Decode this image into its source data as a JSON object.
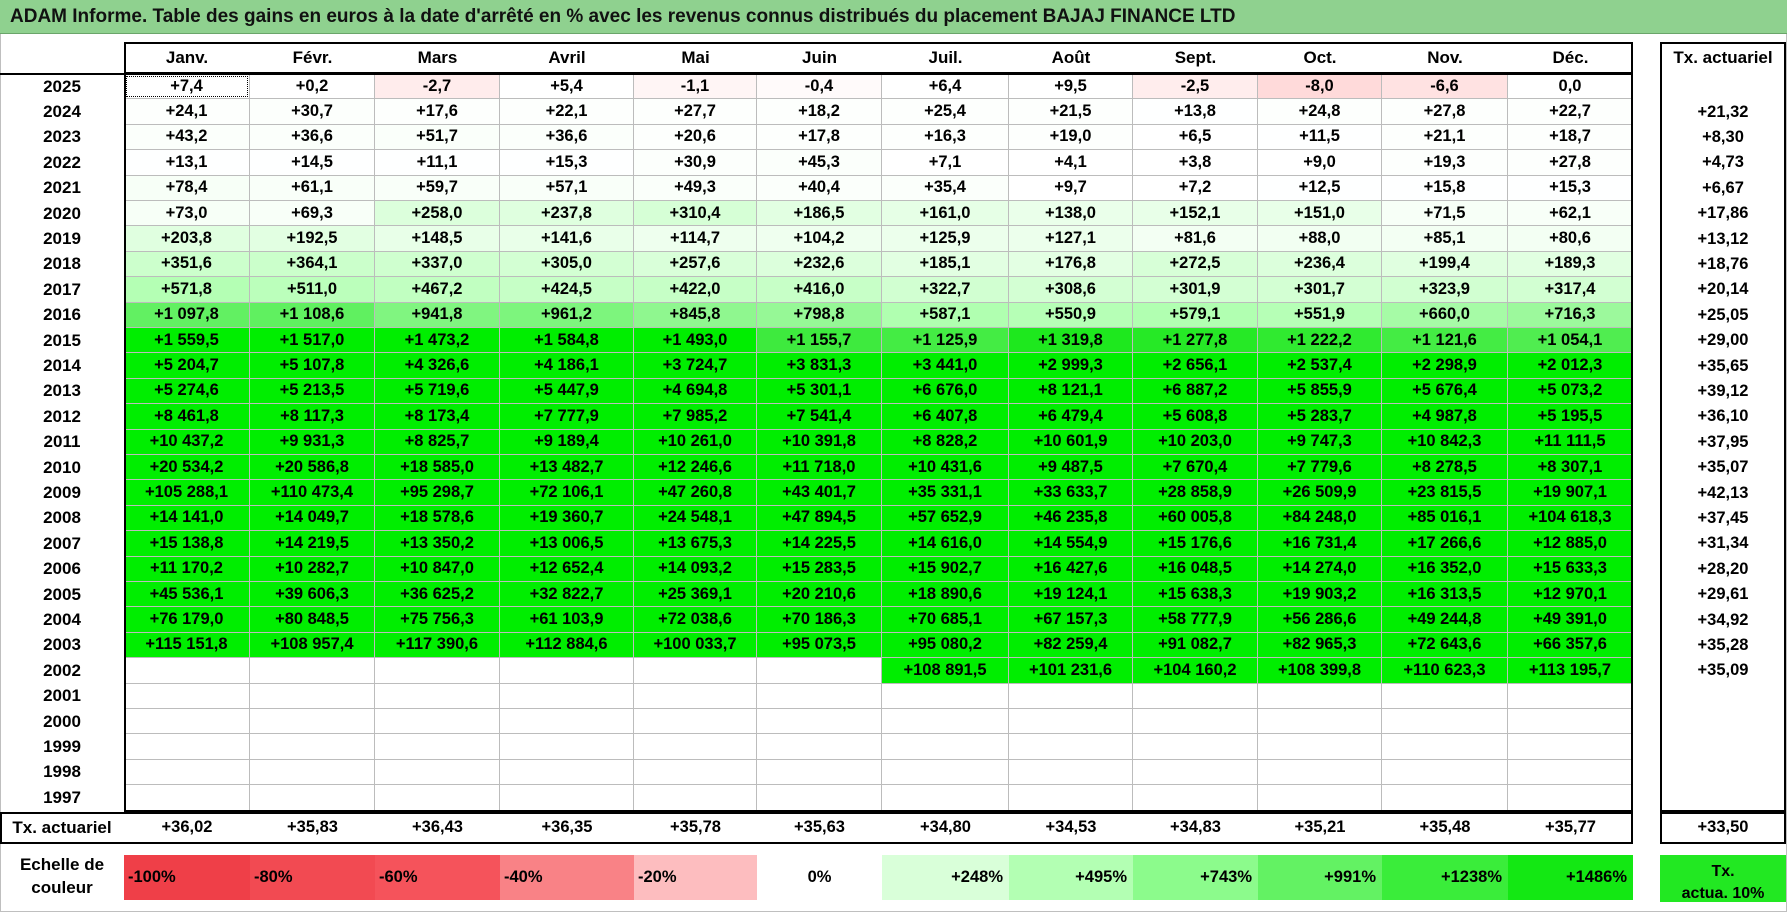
{
  "title": "ADAM Informe. Table des gains en euros à la date d'arrêté en % avec les revenus connus distribués du placement BAJAJ FINANCE LTD",
  "months": [
    "Janv.",
    "Févr.",
    "Mars",
    "Avril",
    "Mai",
    "Juin",
    "Juil.",
    "Août",
    "Sept.",
    "Oct.",
    "Nov.",
    "Déc."
  ],
  "tx_header": "Tx. actuariel",
  "rows": [
    {
      "year": "2025",
      "cells": [
        "+7,4",
        "+0,2",
        "-2,7",
        "+5,4",
        "-1,1",
        "-0,4",
        "+6,4",
        "+9,5",
        "-2,5",
        "-8,0",
        "-6,6",
        "0,0"
      ],
      "colors": [
        "#ffffff",
        "#ffffff",
        "#ffecec",
        "#ffffff",
        "#fff5f5",
        "#fffafa",
        "#ffffff",
        "#ffffff",
        "#ffeded",
        "#ffdada",
        "#ffe2e2",
        "#ffffff"
      ],
      "tx": ""
    },
    {
      "year": "2024",
      "cells": [
        "+24,1",
        "+30,7",
        "+17,6",
        "+22,1",
        "+27,7",
        "+18,2",
        "+25,4",
        "+21,5",
        "+13,8",
        "+24,8",
        "+27,8",
        "+22,7"
      ],
      "colors": [
        "#fdfffd",
        "#fcfffc",
        "#fdfffd",
        "#fdfffd",
        "#fdfffd",
        "#fdfffd",
        "#fdfffd",
        "#fdfffd",
        "#feffff",
        "#fdfffd",
        "#fdfffd",
        "#fdfffd"
      ],
      "tx": "+21,32"
    },
    {
      "year": "2023",
      "cells": [
        "+43,2",
        "+36,6",
        "+51,7",
        "+36,6",
        "+20,6",
        "+17,8",
        "+16,3",
        "+19,0",
        "+6,5",
        "+11,5",
        "+21,1",
        "+18,7"
      ],
      "colors": [
        "#fbfffb",
        "#fbfffb",
        "#fafffa",
        "#fbfffb",
        "#fdfffd",
        "#fdfffd",
        "#fdfffd",
        "#fdfffd",
        "#ffffff",
        "#feffff",
        "#fdfffd",
        "#fdfffd"
      ],
      "tx": "+8,30"
    },
    {
      "year": "2022",
      "cells": [
        "+13,1",
        "+14,5",
        "+11,1",
        "+15,3",
        "+30,9",
        "+45,3",
        "+7,1",
        "+4,1",
        "+3,8",
        "+9,0",
        "+19,3",
        "+27,8"
      ],
      "colors": [
        "#feffff",
        "#feffff",
        "#feffff",
        "#feffff",
        "#fcfffc",
        "#fbfffb",
        "#ffffff",
        "#ffffff",
        "#ffffff",
        "#ffffff",
        "#fdfffd",
        "#fdfffd"
      ],
      "tx": "+4,73"
    },
    {
      "year": "2021",
      "cells": [
        "+78,4",
        "+61,1",
        "+59,7",
        "+57,1",
        "+49,3",
        "+40,4",
        "+35,4",
        "+9,7",
        "+7,2",
        "+12,5",
        "+15,8",
        "+15,3"
      ],
      "colors": [
        "#f7fff7",
        "#f9fff9",
        "#f9fff9",
        "#f9fff9",
        "#fafffa",
        "#fbfffb",
        "#fbfffb",
        "#ffffff",
        "#ffffff",
        "#feffff",
        "#feffff",
        "#feffff"
      ],
      "tx": "+6,67"
    },
    {
      "year": "2020",
      "cells": [
        "+73,0",
        "+69,3",
        "+258,0",
        "+237,8",
        "+310,4",
        "+186,5",
        "+161,0",
        "+138,0",
        "+152,1",
        "+151,0",
        "+71,5",
        "+62,1"
      ],
      "colors": [
        "#f7fff7",
        "#f8fff8",
        "#dcffdc",
        "#dfffdf",
        "#d6ffd6",
        "#e2ffe2",
        "#e6ffe6",
        "#eaffea",
        "#e8ffe8",
        "#e8ffe8",
        "#f7fff7",
        "#f8fff8"
      ],
      "tx": "+17,86"
    },
    {
      "year": "2019",
      "cells": [
        "+203,8",
        "+192,5",
        "+148,5",
        "+141,6",
        "+114,7",
        "+104,2",
        "+125,9",
        "+127,1",
        "+81,6",
        "+88,0",
        "+85,1",
        "+80,6"
      ],
      "colors": [
        "#e0ffe0",
        "#e2ffe2",
        "#e8ffe8",
        "#e9ffe9",
        "#eeffee",
        "#efffef",
        "#ecffec",
        "#ecffec",
        "#f3fff3",
        "#f2fff2",
        "#f3fff3",
        "#f3fff3"
      ],
      "tx": "+13,12"
    },
    {
      "year": "2018",
      "cells": [
        "+351,6",
        "+364,1",
        "+337,0",
        "+305,0",
        "+257,6",
        "+232,6",
        "+185,1",
        "+176,8",
        "+272,5",
        "+236,4",
        "+199,4",
        "+189,3"
      ],
      "colors": [
        "#ccffcc",
        "#cbffcb",
        "#cfffcf",
        "#d3ffd3",
        "#d9ffd9",
        "#dcffdc",
        "#e2ffe2",
        "#e3ffe3",
        "#d7ffd7",
        "#dcffdc",
        "#e0ffe0",
        "#e1ffe1"
      ],
      "tx": "+18,76"
    },
    {
      "year": "2017",
      "cells": [
        "+571,8",
        "+511,0",
        "+467,2",
        "+424,5",
        "+422,0",
        "+416,0",
        "+322,7",
        "+308,6",
        "+301,9",
        "+301,7",
        "+323,9",
        "+317,4"
      ],
      "colors": [
        "#b4ffb4",
        "#bbffbb",
        "#c1ffc1",
        "#c6ffc6",
        "#c6ffc6",
        "#c7ffc7",
        "#d1ffd1",
        "#d3ffd3",
        "#d3ffd3",
        "#d3ffd3",
        "#d1ffd1",
        "#d2ffd2"
      ],
      "tx": "+20,14"
    },
    {
      "year": "2016",
      "cells": [
        "+1 097,8",
        "+1 108,6",
        "+941,8",
        "+961,2",
        "+845,8",
        "+798,8",
        "+587,1",
        "+550,9",
        "+579,1",
        "+551,9",
        "+660,0",
        "+716,3"
      ],
      "colors": [
        "#62f062",
        "#60f060",
        "#80f580",
        "#7df57d",
        "#8ff78f",
        "#96f896",
        "#b0ffb0",
        "#b6ffb6",
        "#b1ffb1",
        "#b6ffb6",
        "#a6fba6",
        "#9cf99c"
      ],
      "tx": "+25,05"
    },
    {
      "year": "2015",
      "cells": [
        "+1 559,5",
        "+1 517,0",
        "+1 473,2",
        "+1 584,8",
        "+1 493,0",
        "+1 155,7",
        "+1 125,9",
        "+1 319,8",
        "+1 277,8",
        "+1 222,2",
        "+1 121,6",
        "+1 054,1"
      ],
      "colors": [
        "#00ee00",
        "#00ee00",
        "#00ee00",
        "#00ee00",
        "#00ee00",
        "#3eea3e",
        "#44ec44",
        "#1ee81e",
        "#26e926",
        "#30ea30",
        "#44ec44",
        "#50ed50"
      ],
      "tx": "+29,00"
    },
    {
      "year": "2014",
      "cells": [
        "+5 204,7",
        "+5 107,8",
        "+4 326,6",
        "+4 186,1",
        "+3 724,7",
        "+3 831,3",
        "+3 441,0",
        "+2 999,3",
        "+2 656,1",
        "+2 537,4",
        "+2 298,9",
        "+2 012,3"
      ],
      "colors": [
        "#00ee00",
        "#00ee00",
        "#00ee00",
        "#00ee00",
        "#00ee00",
        "#00ee00",
        "#00ee00",
        "#00ee00",
        "#00ee00",
        "#00ee00",
        "#00ee00",
        "#00ee00"
      ],
      "tx": "+35,65"
    },
    {
      "year": "2013",
      "cells": [
        "+5 274,6",
        "+5 213,5",
        "+5 719,6",
        "+5 447,9",
        "+4 694,8",
        "+5 301,1",
        "+6 676,0",
        "+8 121,1",
        "+6 887,2",
        "+5 855,9",
        "+5 676,4",
        "+5 073,2"
      ],
      "colors": [
        "#00ee00",
        "#00ee00",
        "#00ee00",
        "#00ee00",
        "#00ee00",
        "#00ee00",
        "#00ee00",
        "#00ee00",
        "#00ee00",
        "#00ee00",
        "#00ee00",
        "#00ee00"
      ],
      "tx": "+39,12"
    },
    {
      "year": "2012",
      "cells": [
        "+8 461,8",
        "+8 117,3",
        "+8 173,4",
        "+7 777,9",
        "+7 985,2",
        "+7 541,4",
        "+6 407,8",
        "+6 479,4",
        "+5 608,8",
        "+5 283,7",
        "+4 987,8",
        "+5 195,5"
      ],
      "colors": [
        "#00ee00",
        "#00ee00",
        "#00ee00",
        "#00ee00",
        "#00ee00",
        "#00ee00",
        "#00ee00",
        "#00ee00",
        "#00ee00",
        "#00ee00",
        "#00ee00",
        "#00ee00"
      ],
      "tx": "+36,10"
    },
    {
      "year": "2011",
      "cells": [
        "+10 437,2",
        "+9 931,3",
        "+8 825,7",
        "+9 189,4",
        "+10 261,0",
        "+10 391,8",
        "+8 828,2",
        "+10 601,9",
        "+10 203,0",
        "+9 747,3",
        "+10 842,3",
        "+11 111,5"
      ],
      "colors": [
        "#00ee00",
        "#00ee00",
        "#00ee00",
        "#00ee00",
        "#00ee00",
        "#00ee00",
        "#00ee00",
        "#00ee00",
        "#00ee00",
        "#00ee00",
        "#00ee00",
        "#00ee00"
      ],
      "tx": "+37,95"
    },
    {
      "year": "2010",
      "cells": [
        "+20 534,2",
        "+20 586,8",
        "+18 585,0",
        "+13 482,7",
        "+12 246,6",
        "+11 718,0",
        "+10 431,6",
        "+9 487,5",
        "+7 670,4",
        "+7 779,6",
        "+8 278,5",
        "+8 307,1"
      ],
      "colors": [
        "#00ee00",
        "#00ee00",
        "#00ee00",
        "#00ee00",
        "#00ee00",
        "#00ee00",
        "#00ee00",
        "#00ee00",
        "#00ee00",
        "#00ee00",
        "#00ee00",
        "#00ee00"
      ],
      "tx": "+35,07"
    },
    {
      "year": "2009",
      "cells": [
        "+105 288,1",
        "+110 473,4",
        "+95 298,7",
        "+72 106,1",
        "+47 260,8",
        "+43 401,7",
        "+35 331,1",
        "+33 633,7",
        "+28 858,9",
        "+26 509,9",
        "+23 815,5",
        "+19 907,1"
      ],
      "colors": [
        "#00ee00",
        "#00ee00",
        "#00ee00",
        "#00ee00",
        "#00ee00",
        "#00ee00",
        "#00ee00",
        "#00ee00",
        "#00ee00",
        "#00ee00",
        "#00ee00",
        "#00ee00"
      ],
      "tx": "+42,13"
    },
    {
      "year": "2008",
      "cells": [
        "+14 141,0",
        "+14 049,7",
        "+18 578,6",
        "+19 360,7",
        "+24 548,1",
        "+47 894,5",
        "+57 652,9",
        "+46 235,8",
        "+60 005,8",
        "+84 248,0",
        "+85 016,1",
        "+104 618,3"
      ],
      "colors": [
        "#00ee00",
        "#00ee00",
        "#00ee00",
        "#00ee00",
        "#00ee00",
        "#00ee00",
        "#00ee00",
        "#00ee00",
        "#00ee00",
        "#00ee00",
        "#00ee00",
        "#00ee00"
      ],
      "tx": "+37,45"
    },
    {
      "year": "2007",
      "cells": [
        "+15 138,8",
        "+14 219,5",
        "+13 350,2",
        "+13 006,5",
        "+13 675,3",
        "+14 225,5",
        "+14 616,0",
        "+14 554,9",
        "+15 176,6",
        "+16 731,4",
        "+17 266,6",
        "+12 885,0"
      ],
      "colors": [
        "#00ee00",
        "#00ee00",
        "#00ee00",
        "#00ee00",
        "#00ee00",
        "#00ee00",
        "#00ee00",
        "#00ee00",
        "#00ee00",
        "#00ee00",
        "#00ee00",
        "#00ee00"
      ],
      "tx": "+31,34"
    },
    {
      "year": "2006",
      "cells": [
        "+11 170,2",
        "+10 282,7",
        "+10 847,0",
        "+12 652,4",
        "+14 093,2",
        "+15 283,5",
        "+15 902,7",
        "+16 427,6",
        "+16 048,5",
        "+14 274,0",
        "+16 352,0",
        "+15 633,3"
      ],
      "colors": [
        "#00ee00",
        "#00ee00",
        "#00ee00",
        "#00ee00",
        "#00ee00",
        "#00ee00",
        "#00ee00",
        "#00ee00",
        "#00ee00",
        "#00ee00",
        "#00ee00",
        "#00ee00"
      ],
      "tx": "+28,20"
    },
    {
      "year": "2005",
      "cells": [
        "+45 536,1",
        "+39 606,3",
        "+36 625,2",
        "+32 822,7",
        "+25 369,1",
        "+20 210,6",
        "+18 890,6",
        "+19 124,1",
        "+15 638,3",
        "+19 903,2",
        "+16 313,5",
        "+12 970,1"
      ],
      "colors": [
        "#00ee00",
        "#00ee00",
        "#00ee00",
        "#00ee00",
        "#00ee00",
        "#00ee00",
        "#00ee00",
        "#00ee00",
        "#00ee00",
        "#00ee00",
        "#00ee00",
        "#00ee00"
      ],
      "tx": "+29,61"
    },
    {
      "year": "2004",
      "cells": [
        "+76 179,0",
        "+80 848,5",
        "+75 756,3",
        "+61 103,9",
        "+72 038,6",
        "+70 186,3",
        "+70 685,1",
        "+67 157,3",
        "+58 777,9",
        "+56 286,6",
        "+49 244,8",
        "+49 391,0"
      ],
      "colors": [
        "#00ee00",
        "#00ee00",
        "#00ee00",
        "#00ee00",
        "#00ee00",
        "#00ee00",
        "#00ee00",
        "#00ee00",
        "#00ee00",
        "#00ee00",
        "#00ee00",
        "#00ee00"
      ],
      "tx": "+34,92"
    },
    {
      "year": "2003",
      "cells": [
        "+115 151,8",
        "+108 957,4",
        "+117 390,6",
        "+112 884,6",
        "+100 033,7",
        "+95 073,5",
        "+95 080,2",
        "+82 259,4",
        "+91 082,7",
        "+82 965,3",
        "+72 643,6",
        "+66 357,6"
      ],
      "colors": [
        "#00ee00",
        "#00ee00",
        "#00ee00",
        "#00ee00",
        "#00ee00",
        "#00ee00",
        "#00ee00",
        "#00ee00",
        "#00ee00",
        "#00ee00",
        "#00ee00",
        "#00ee00"
      ],
      "tx": "+35,28"
    },
    {
      "year": "2002",
      "cells": [
        "",
        "",
        "",
        "",
        "",
        "",
        "+108 891,5",
        "+101 231,6",
        "+104 160,2",
        "+108 399,8",
        "+110 623,3",
        "+113 195,7"
      ],
      "colors": [
        "#ffffff",
        "#ffffff",
        "#ffffff",
        "#ffffff",
        "#ffffff",
        "#ffffff",
        "#00ee00",
        "#00ee00",
        "#00ee00",
        "#00ee00",
        "#00ee00",
        "#00ee00"
      ],
      "tx": "+35,09"
    },
    {
      "year": "2001",
      "cells": [
        "",
        "",
        "",
        "",
        "",
        "",
        "",
        "",
        "",
        "",
        "",
        ""
      ],
      "colors": [
        "#ffffff",
        "#ffffff",
        "#ffffff",
        "#ffffff",
        "#ffffff",
        "#ffffff",
        "#ffffff",
        "#ffffff",
        "#ffffff",
        "#ffffff",
        "#ffffff",
        "#ffffff"
      ],
      "tx": ""
    },
    {
      "year": "2000",
      "cells": [
        "",
        "",
        "",
        "",
        "",
        "",
        "",
        "",
        "",
        "",
        "",
        ""
      ],
      "colors": [
        "#ffffff",
        "#ffffff",
        "#ffffff",
        "#ffffff",
        "#ffffff",
        "#ffffff",
        "#ffffff",
        "#ffffff",
        "#ffffff",
        "#ffffff",
        "#ffffff",
        "#ffffff"
      ],
      "tx": ""
    },
    {
      "year": "1999",
      "cells": [
        "",
        "",
        "",
        "",
        "",
        "",
        "",
        "",
        "",
        "",
        "",
        ""
      ],
      "colors": [
        "#ffffff",
        "#ffffff",
        "#ffffff",
        "#ffffff",
        "#ffffff",
        "#ffffff",
        "#ffffff",
        "#ffffff",
        "#ffffff",
        "#ffffff",
        "#ffffff",
        "#ffffff"
      ],
      "tx": ""
    },
    {
      "year": "1998",
      "cells": [
        "",
        "",
        "",
        "",
        "",
        "",
        "",
        "",
        "",
        "",
        "",
        ""
      ],
      "colors": [
        "#ffffff",
        "#ffffff",
        "#ffffff",
        "#ffffff",
        "#ffffff",
        "#ffffff",
        "#ffffff",
        "#ffffff",
        "#ffffff",
        "#ffffff",
        "#ffffff",
        "#ffffff"
      ],
      "tx": ""
    },
    {
      "year": "1997",
      "cells": [
        "",
        "",
        "",
        "",
        "",
        "",
        "",
        "",
        "",
        "",
        "",
        ""
      ],
      "colors": [
        "#ffffff",
        "#ffffff",
        "#ffffff",
        "#ffffff",
        "#ffffff",
        "#ffffff",
        "#ffffff",
        "#ffffff",
        "#ffffff",
        "#ffffff",
        "#ffffff",
        "#ffffff"
      ],
      "tx": ""
    }
  ],
  "footer": {
    "label": "Tx. actuariel",
    "values": [
      "+36,02",
      "+35,83",
      "+36,43",
      "+36,35",
      "+35,78",
      "+35,63",
      "+34,80",
      "+34,53",
      "+34,83",
      "+35,21",
      "+35,48",
      "+35,77"
    ],
    "total": "+33,50"
  },
  "legend": {
    "label_line1": "Echelle de",
    "label_line2": "couleur",
    "items": [
      {
        "label": "-100%",
        "color": "#ef3f48",
        "kind": "neg"
      },
      {
        "label": "-80%",
        "color": "#f24a52",
        "kind": "neg"
      },
      {
        "label": "-60%",
        "color": "#f5535b",
        "kind": "neg"
      },
      {
        "label": "-40%",
        "color": "#f98286",
        "kind": "neg"
      },
      {
        "label": "-20%",
        "color": "#fdbdbf",
        "kind": "neg"
      },
      {
        "label": "0%",
        "color": "#ffffff",
        "kind": "zero"
      },
      {
        "label": "+248%",
        "color": "#d9ffd9",
        "kind": "pos"
      },
      {
        "label": "+495%",
        "color": "#b3ffb3",
        "kind": "pos"
      },
      {
        "label": "+743%",
        "color": "#8cfb8c",
        "kind": "pos"
      },
      {
        "label": "+991%",
        "color": "#63f263",
        "kind": "pos"
      },
      {
        "label": "+1238%",
        "color": "#3aed3a",
        "kind": "pos"
      },
      {
        "label": "+1486%",
        "color": "#13e813",
        "kind": "pos"
      }
    ],
    "tx10_line1": "Tx.",
    "tx10_line2": "actua. 10%",
    "tx10_color": "#22e822"
  }
}
